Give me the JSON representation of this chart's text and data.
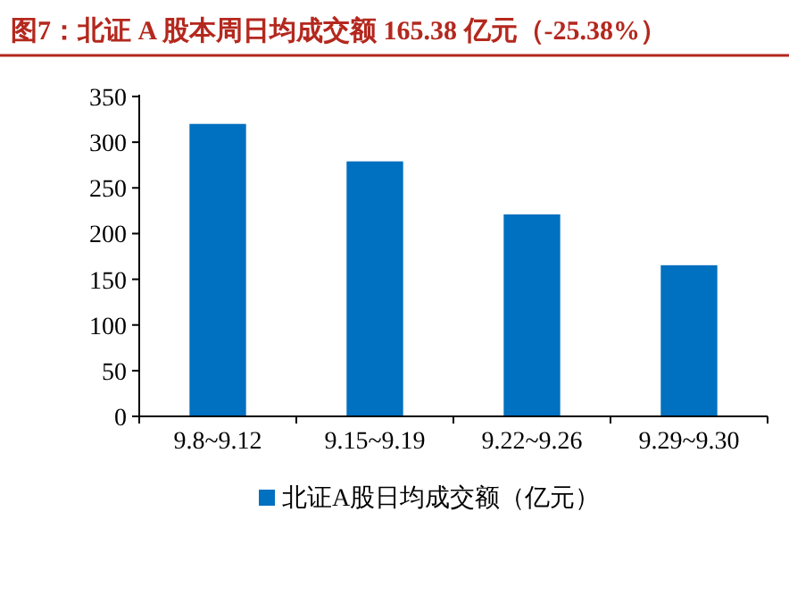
{
  "chart_data": {
    "type": "bar",
    "title": "图7：北证 A 股本周日均成交额 165.38 亿元（-25.38%）",
    "categories": [
      "9.8~9.12",
      "9.15~9.19",
      "9.22~9.26",
      "9.29~9.30"
    ],
    "series": [
      {
        "name": "北证A股日均成交额（亿元）",
        "color": "#0070c0",
        "values": [
          320,
          279,
          221,
          165.38
        ]
      }
    ],
    "ylim": [
      0,
      350
    ],
    "yticks": [
      0,
      50,
      100,
      150,
      200,
      250,
      300,
      350
    ],
    "legend": "bottom",
    "grid": false
  }
}
